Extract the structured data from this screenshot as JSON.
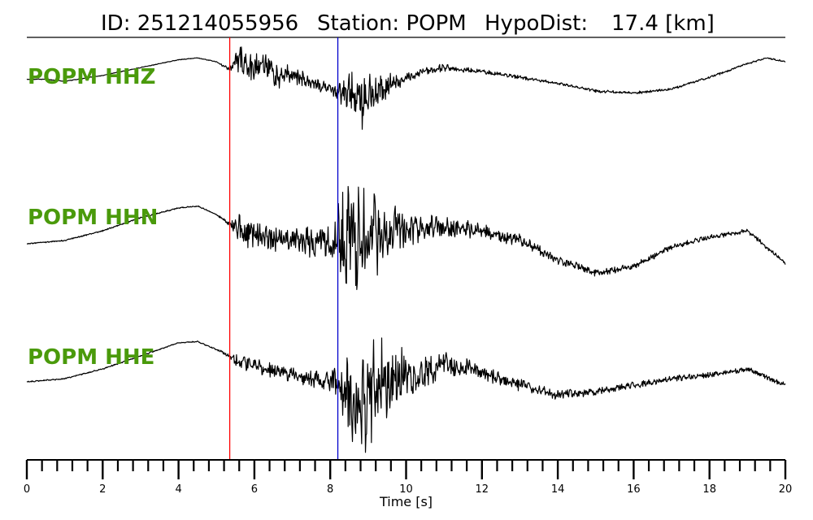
{
  "header": {
    "id_text": "ID: 251214055956",
    "station_text": "Station: POPM",
    "hypodist_text": "HypoDist:",
    "hypodist_value": "17.4 [km]"
  },
  "colors": {
    "trace": "#000000",
    "label": "#4a9a0b",
    "p_pick": "#ff0000",
    "s_pick": "#0000cc"
  },
  "chart_data": {
    "type": "line",
    "title": "ID: 251214055956   Station: POPM   HypoDist:    17.4 [km]",
    "xlabel": "Time [s]",
    "ylabel": "",
    "xlim": [
      0,
      20
    ],
    "x_ticks": [
      0,
      2,
      4,
      6,
      8,
      10,
      12,
      14,
      16,
      18,
      20
    ],
    "minor_tick_step": 0.4,
    "picks": [
      {
        "phase": "P",
        "time": 5.35,
        "color": "#ff0000"
      },
      {
        "phase": "S",
        "time": 8.2,
        "color": "#0000cc"
      }
    ],
    "series": [
      {
        "name": "POPM HHZ",
        "x": [
          0,
          0.5,
          1,
          2,
          3,
          4,
          4.5,
          5,
          5.35,
          5.6,
          5.9,
          6.2,
          6.6,
          7,
          7.5,
          8,
          8.2,
          8.5,
          8.8,
          9.2,
          9.6,
          10,
          10.5,
          11,
          11.5,
          12,
          13,
          14,
          15,
          16,
          17,
          18,
          19,
          19.5,
          20
        ],
        "y": [
          0.05,
          0.05,
          0.0,
          0.15,
          0.35,
          0.55,
          0.6,
          0.5,
          0.3,
          0.6,
          0.3,
          0.5,
          0.1,
          0.2,
          -0.05,
          -0.2,
          -0.3,
          -0.2,
          -0.55,
          -0.25,
          -0.1,
          0.05,
          0.25,
          0.35,
          0.3,
          0.25,
          0.1,
          -0.05,
          -0.25,
          -0.3,
          -0.2,
          0.1,
          0.45,
          0.6,
          0.5
        ],
        "noise": [
          0.01,
          0.01,
          0.01,
          0.01,
          0.01,
          0.01,
          0.01,
          0.01,
          0.06,
          0.45,
          0.4,
          0.35,
          0.3,
          0.25,
          0.2,
          0.15,
          0.3,
          0.55,
          0.75,
          0.5,
          0.35,
          0.2,
          0.12,
          0.1,
          0.08,
          0.06,
          0.05,
          0.04,
          0.04,
          0.04,
          0.03,
          0.03,
          0.03,
          0.02,
          0.02
        ]
      },
      {
        "name": "POPM HHN",
        "x": [
          0,
          1,
          2,
          3,
          4,
          4.5,
          5,
          5.35,
          5.6,
          6,
          7,
          8,
          8.2,
          8.4,
          8.7,
          9,
          9.5,
          10,
          11,
          12,
          13,
          14,
          15,
          16,
          17,
          18,
          19,
          20
        ],
        "y": [
          0.0,
          0.05,
          0.2,
          0.4,
          0.55,
          0.58,
          0.45,
          0.3,
          0.2,
          0.15,
          0.05,
          0.0,
          0.0,
          0.1,
          0.0,
          0.05,
          0.15,
          0.25,
          0.25,
          0.2,
          0.05,
          -0.25,
          -0.45,
          -0.35,
          -0.05,
          0.1,
          0.2,
          -0.3
        ],
        "noise": [
          0.01,
          0.01,
          0.01,
          0.01,
          0.01,
          0.01,
          0.01,
          0.04,
          0.28,
          0.25,
          0.22,
          0.3,
          0.6,
          1.0,
          0.95,
          0.8,
          0.5,
          0.3,
          0.18,
          0.12,
          0.1,
          0.07,
          0.06,
          0.05,
          0.05,
          0.04,
          0.04,
          0.03
        ]
      },
      {
        "name": "POPM HHE",
        "x": [
          0,
          1,
          2,
          3,
          4,
          4.5,
          5,
          5.35,
          5.6,
          6,
          7,
          8,
          8.2,
          8.5,
          8.8,
          9.2,
          9.6,
          10,
          11,
          12,
          13,
          14,
          15,
          16,
          17,
          18,
          19,
          20
        ],
        "y": [
          0.0,
          0.05,
          0.2,
          0.4,
          0.6,
          0.62,
          0.5,
          0.4,
          0.3,
          0.25,
          0.1,
          0.0,
          0.0,
          -0.15,
          -0.35,
          -0.1,
          0.05,
          0.1,
          0.25,
          0.15,
          -0.05,
          -0.2,
          -0.15,
          -0.05,
          0.05,
          0.1,
          0.2,
          -0.05
        ],
        "noise": [
          0.01,
          0.01,
          0.01,
          0.01,
          0.01,
          0.01,
          0.01,
          0.04,
          0.12,
          0.12,
          0.12,
          0.15,
          0.4,
          0.8,
          1.05,
          0.85,
          0.6,
          0.4,
          0.22,
          0.13,
          0.1,
          0.08,
          0.06,
          0.06,
          0.05,
          0.05,
          0.04,
          0.04
        ]
      }
    ]
  }
}
